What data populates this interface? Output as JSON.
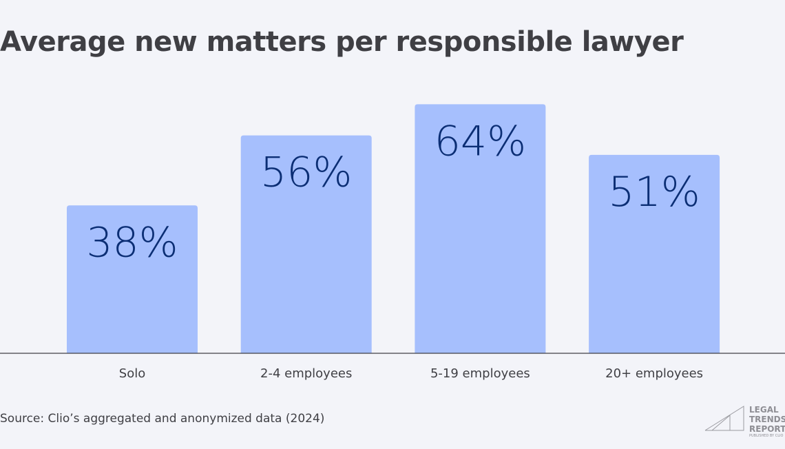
{
  "chart_data": {
    "type": "bar",
    "title": "Average new matters per responsible lawyer",
    "categories": [
      "Solo",
      "2-4 employees",
      "5-19 employees",
      "20+ employees"
    ],
    "values": [
      38,
      56,
      64,
      51
    ],
    "data_labels": [
      "38%",
      "56%",
      "64%",
      "51%"
    ],
    "xlabel": "",
    "ylabel": "",
    "ylim": [
      0,
      90
    ],
    "grid": false,
    "bar_color": "#a6bffd",
    "label_color": "#0b2e74"
  },
  "source": "Source: Clio’s aggregated and anonymized data (2024)",
  "logo": {
    "line1": "LEGAL",
    "line2": "TRENDS",
    "line3": "REPORT",
    "tagline": "PUBLISHED BY CLIO"
  }
}
